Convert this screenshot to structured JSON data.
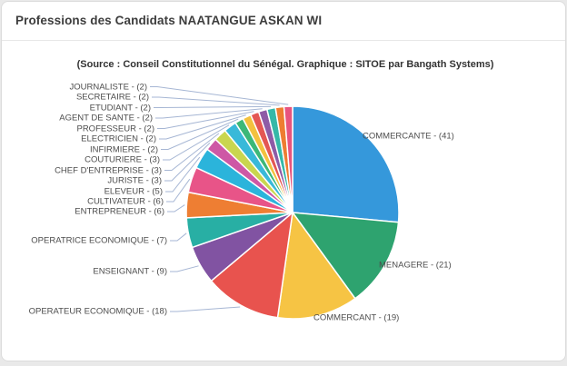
{
  "card": {
    "title": "Professions des Candidats NAATANGUE ASKAN WI"
  },
  "chart_data": {
    "type": "pie",
    "title": "Professions des Candidats NAATANGUE ASKAN WI",
    "subtitle": "(Source : Conseil Constitutionnel du Sénégal. Graphique : SITOE par Bangath Systems)",
    "legend_position": "none",
    "label_format": "NAME - (VALUE)",
    "connector_line_color": "#a6b6d4",
    "slices": [
      {
        "label": "COMMERCANTE",
        "value": 41,
        "color": "#3598db"
      },
      {
        "label": "MENAGERE",
        "value": 21,
        "color": "#2ea36f"
      },
      {
        "label": "COMMERCANT",
        "value": 19,
        "color": "#f6c444"
      },
      {
        "label": "OPERATEUR ECONOMIQUE",
        "value": 18,
        "color": "#e8534e"
      },
      {
        "label": "ENSEIGNANT",
        "value": 9,
        "color": "#8153a2"
      },
      {
        "label": "OPERATRICE ECONOMIQUE",
        "value": 7,
        "color": "#28afa4"
      },
      {
        "label": "ENTREPRENEUR",
        "value": 6,
        "color": "#ee7e33"
      },
      {
        "label": "CULTIVATEUR",
        "value": 6,
        "color": "#e85488"
      },
      {
        "label": "ELEVEUR",
        "value": 5,
        "color": "#2bb4db"
      },
      {
        "label": "JURISTE",
        "value": 3,
        "color": "#ce58a5"
      },
      {
        "label": "CHEF D'ENTREPRISE",
        "value": 3,
        "color": "#c9d64f"
      },
      {
        "label": "COUTURIERE",
        "value": 3,
        "color": "#38b9d9"
      },
      {
        "label": "INFIRMIERE",
        "value": 2,
        "color": "#3cb878"
      },
      {
        "label": "ELECTRICIEN",
        "value": 2,
        "color": "#f3c13e"
      },
      {
        "label": "PROFESSEUR",
        "value": 2,
        "color": "#e45753"
      },
      {
        "label": "AGENT DE SANTE",
        "value": 2,
        "color": "#8e5ba6"
      },
      {
        "label": "ETUDIANT",
        "value": 2,
        "color": "#35b8a8"
      },
      {
        "label": "SECRETAIRE",
        "value": 2,
        "color": "#ee7d31"
      },
      {
        "label": "JOURNALISTE",
        "value": 2,
        "color": "#e8547e"
      }
    ]
  }
}
